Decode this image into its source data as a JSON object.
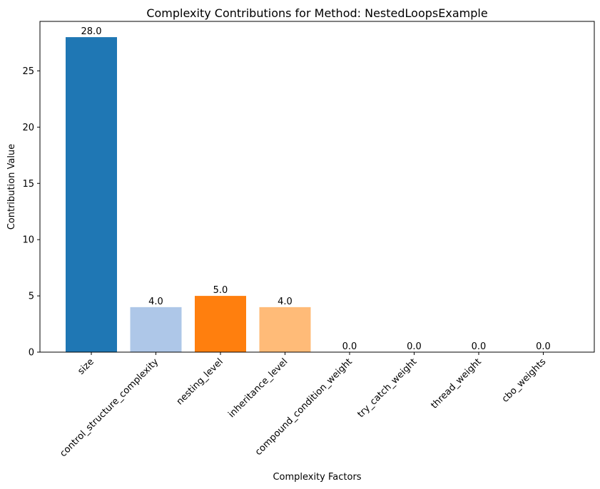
{
  "chart_data": {
    "type": "bar",
    "title": "Complexity Contributions for Method: NestedLoopsExample",
    "xlabel": "Complexity Factors",
    "ylabel": "Contribution Value",
    "categories": [
      "size",
      "control_structure_complexity",
      "nesting_level",
      "inheritance_level",
      "compound_condition_weight",
      "try_catch_weight",
      "thread_weight",
      "cbo_weights"
    ],
    "values": [
      28.0,
      4.0,
      5.0,
      4.0,
      0.0,
      0.0,
      0.0,
      0.0
    ],
    "value_labels": [
      "28.0",
      "4.0",
      "5.0",
      "4.0",
      "0.0",
      "0.0",
      "0.0",
      "0.0"
    ],
    "colors": [
      "#1f77b4",
      "#aec7e8",
      "#ff7f0e",
      "#ffbb78",
      "#2ca02c",
      "#98df8a",
      "#d62728",
      "#ff9896"
    ],
    "yticks": [
      0,
      5,
      10,
      15,
      20,
      25
    ],
    "ylim": [
      0,
      29.4
    ],
    "grid": false
  }
}
